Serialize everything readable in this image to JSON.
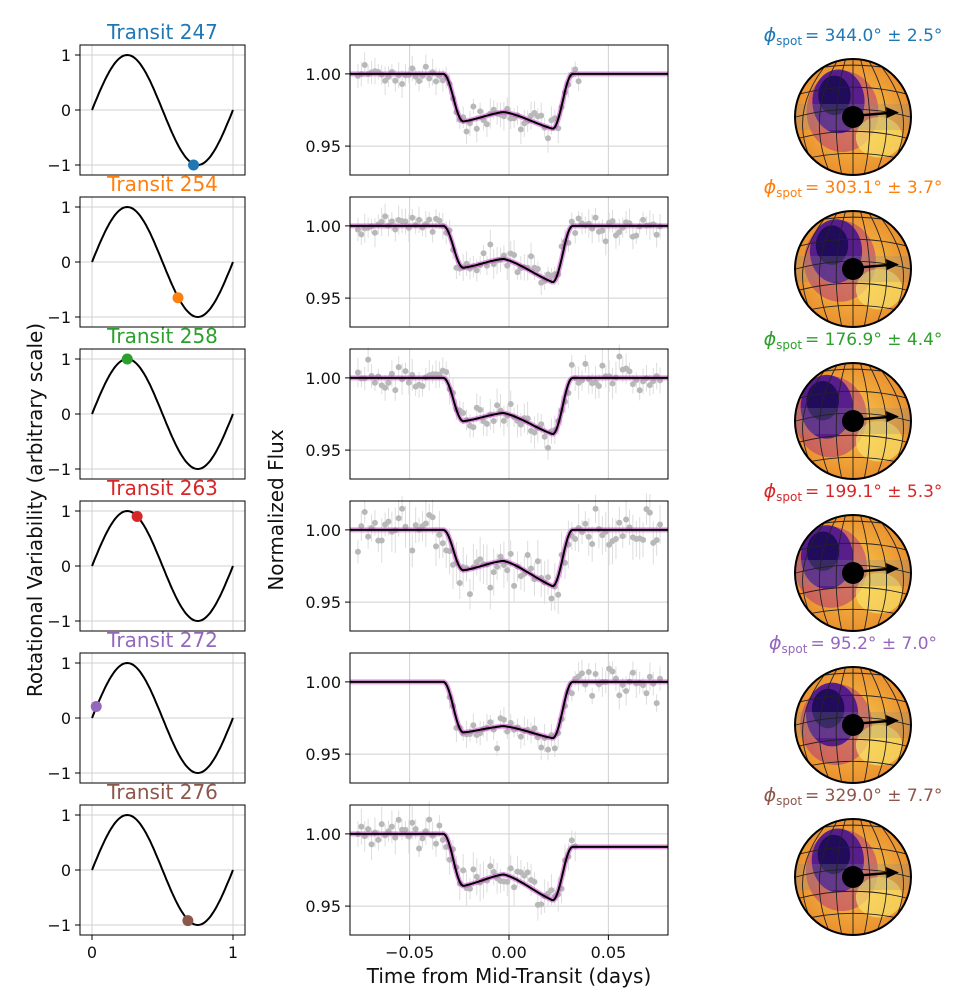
{
  "figure": {
    "ylabel_left": "Rotational Variability (arbitrary scale)",
    "ylabel_mid": "Normalized Flux",
    "xlabel_mid": "Time from Mid-Transit (days)"
  },
  "chart_data": [
    {
      "type": "line",
      "panel": "rotational-variability",
      "xlim": [
        0,
        1
      ],
      "ylim": [
        -1,
        1
      ],
      "xticks": [
        "0",
        "1"
      ],
      "yticks": [
        "1",
        "0",
        "−1"
      ],
      "grid": true,
      "rows": [
        {
          "title": "Transit 247",
          "color": "#1f77b4",
          "phase": 0.72,
          "value": -1.0
        },
        {
          "title": "Transit 254",
          "color": "#ff7f0e",
          "phase": 0.61,
          "value": -0.65
        },
        {
          "title": "Transit 258",
          "color": "#2ca02c",
          "phase": 0.25,
          "value": 1.0
        },
        {
          "title": "Transit 263",
          "color": "#d62728",
          "phase": 0.32,
          "value": 0.9
        },
        {
          "title": "Transit 272",
          "color": "#9467bd",
          "phase": 0.03,
          "value": 0.21
        },
        {
          "title": "Transit 276",
          "color": "#8c564b",
          "phase": 0.68,
          "value": -0.92
        }
      ]
    },
    {
      "type": "scatter",
      "panel": "transit-light-curves",
      "xlim": [
        -0.08,
        0.08
      ],
      "ylim": [
        0.93,
        1.02
      ],
      "xticks": [
        "−0.05",
        "0.00",
        "0.05"
      ],
      "yticks": [
        "1.00",
        "0.95"
      ],
      "grid": true,
      "model_color": "#000000",
      "posterior_color": "#cc44cc",
      "data_color": "#b8b8b8",
      "rows": [
        {
          "depth_left": 0.967,
          "depth_right": 0.962,
          "dip_center": 0.972,
          "out_level": 1.0,
          "noise": 0.008
        },
        {
          "depth_left": 0.971,
          "depth_right": 0.961,
          "dip_center": 0.973,
          "out_level": 1.0,
          "noise": 0.008
        },
        {
          "depth_left": 0.97,
          "depth_right": 0.961,
          "dip_center": 0.972,
          "out_level": 1.0,
          "noise": 0.009
        },
        {
          "depth_left": 0.972,
          "depth_right": 0.961,
          "dip_center": 0.974,
          "out_level": 1.0,
          "noise": 0.013
        },
        {
          "depth_left": 0.965,
          "depth_right": 0.961,
          "dip_center": 0.968,
          "out_level": 1.0,
          "noise": 0.008
        },
        {
          "depth_left": 0.964,
          "depth_right": 0.954,
          "dip_center": 0.968,
          "out_level": 0.991,
          "noise": 0.01
        }
      ]
    },
    {
      "type": "heatmap",
      "panel": "spot-maps",
      "rows": [
        {
          "label_prefix": "ϕ",
          "label_sub": "spot",
          "value": "= 344.0° ± 2.5°",
          "color": "#1f77b4",
          "spot_lon": 344.0,
          "spot_err": 2.5
        },
        {
          "label_prefix": "ϕ",
          "label_sub": "spot",
          "value": "= 303.1° ± 3.7°",
          "color": "#ff7f0e",
          "spot_lon": 303.1,
          "spot_err": 3.7
        },
        {
          "label_prefix": "ϕ",
          "label_sub": "spot",
          "value": "= 176.9° ± 4.4°",
          "color": "#2ca02c",
          "spot_lon": 176.9,
          "spot_err": 4.4
        },
        {
          "label_prefix": "ϕ",
          "label_sub": "spot",
          "value": "= 199.1° ± 5.3°",
          "color": "#d62728",
          "spot_lon": 199.1,
          "spot_err": 5.3
        },
        {
          "label_prefix": "ϕ",
          "label_sub": "spot",
          "value": "= 95.2° ± 7.0°",
          "color": "#9467bd",
          "spot_lon": 95.2,
          "spot_err": 7.0
        },
        {
          "label_prefix": "ϕ",
          "label_sub": "spot",
          "value": "= 329.0° ± 7.7°",
          "color": "#8c564b",
          "spot_lon": 329.0,
          "spot_err": 7.7
        }
      ]
    }
  ]
}
